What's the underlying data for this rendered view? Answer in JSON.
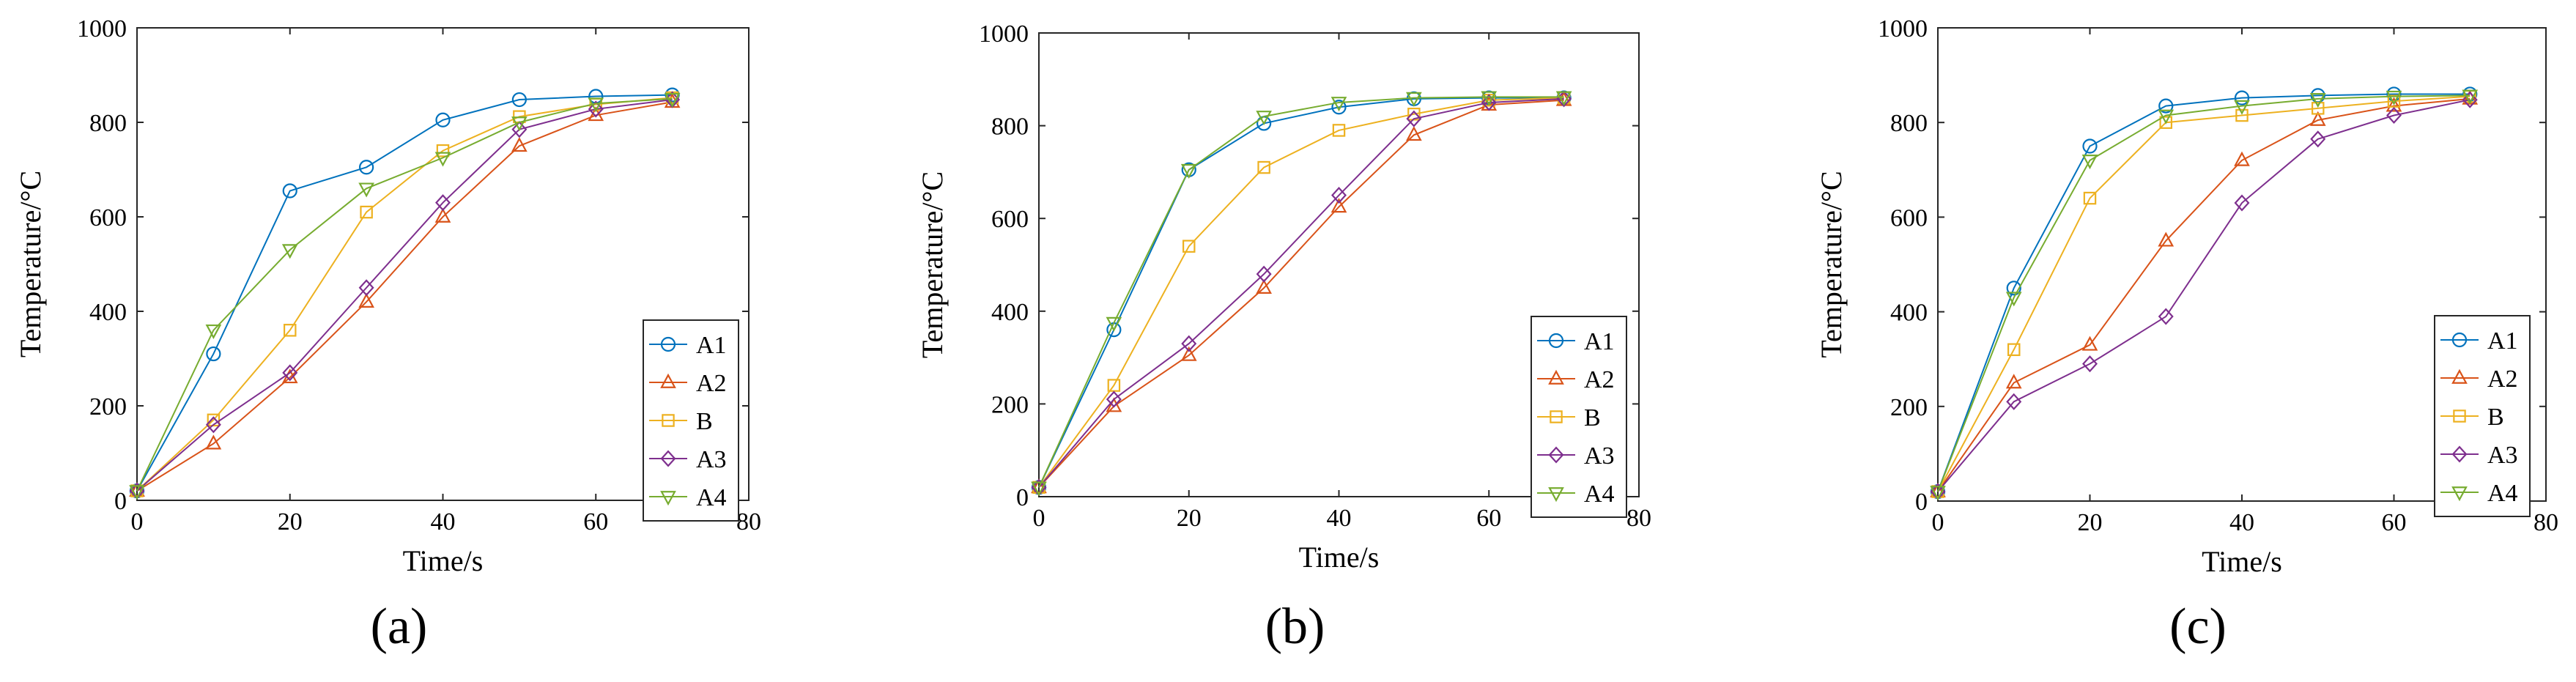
{
  "figure": {
    "series_styles": [
      {
        "name": "A1",
        "color": "#0072BD",
        "marker": "circle"
      },
      {
        "name": "A2",
        "color": "#D95319",
        "marker": "triangle-up"
      },
      {
        "name": "B",
        "color": "#EDB120",
        "marker": "square"
      },
      {
        "name": "A3",
        "color": "#7E2F8E",
        "marker": "diamond"
      },
      {
        "name": "A4",
        "color": "#77AC30",
        "marker": "triangle-down"
      }
    ]
  },
  "chart_data": [
    {
      "type": "line",
      "panel_label": "(a)",
      "xlabel": "Time/s",
      "ylabel": "Temperature/°C",
      "xlim": [
        0,
        80
      ],
      "ylim": [
        0,
        1000
      ],
      "xticks": [
        0,
        20,
        40,
        60,
        80
      ],
      "yticks": [
        0,
        200,
        400,
        600,
        800,
        1000
      ],
      "grid": false,
      "legend_position": "bottom-right",
      "x": [
        0,
        10,
        20,
        30,
        40,
        50,
        60,
        70
      ],
      "series": [
        {
          "name": "A1",
          "values": [
            20,
            310,
            655,
            705,
            805,
            848,
            855,
            858
          ]
        },
        {
          "name": "A2",
          "values": [
            20,
            120,
            260,
            420,
            600,
            750,
            815,
            843
          ]
        },
        {
          "name": "B",
          "values": [
            20,
            170,
            360,
            610,
            740,
            812,
            838,
            852
          ]
        },
        {
          "name": "A3",
          "values": [
            20,
            160,
            270,
            450,
            630,
            785,
            828,
            848
          ]
        },
        {
          "name": "A4",
          "values": [
            20,
            360,
            530,
            660,
            725,
            800,
            840,
            850
          ]
        }
      ]
    },
    {
      "type": "line",
      "panel_label": "(b)",
      "xlabel": "Time/s",
      "ylabel": "Temperature/°C",
      "xlim": [
        0,
        80
      ],
      "ylim": [
        0,
        1000
      ],
      "xticks": [
        0,
        20,
        40,
        60,
        80
      ],
      "yticks": [
        0,
        200,
        400,
        600,
        800,
        1000
      ],
      "grid": false,
      "legend_position": "bottom-right",
      "x": [
        0,
        10,
        20,
        30,
        40,
        50,
        60,
        70
      ],
      "series": [
        {
          "name": "A1",
          "values": [
            20,
            360,
            705,
            805,
            840,
            858,
            860,
            860
          ]
        },
        {
          "name": "A2",
          "values": [
            20,
            195,
            305,
            450,
            625,
            780,
            845,
            855
          ]
        },
        {
          "name": "B",
          "values": [
            20,
            240,
            540,
            710,
            790,
            825,
            855,
            860
          ]
        },
        {
          "name": "A3",
          "values": [
            20,
            210,
            330,
            480,
            650,
            815,
            850,
            858
          ]
        },
        {
          "name": "A4",
          "values": [
            20,
            375,
            705,
            820,
            850,
            860,
            862,
            862
          ]
        }
      ]
    },
    {
      "type": "line",
      "panel_label": "(c)",
      "xlabel": "Time/s",
      "ylabel": "Temperature/°C",
      "xlim": [
        0,
        80
      ],
      "ylim": [
        0,
        1000
      ],
      "xticks": [
        0,
        20,
        40,
        60,
        80
      ],
      "yticks": [
        0,
        200,
        400,
        600,
        800,
        1000
      ],
      "grid": false,
      "legend_position": "bottom-right",
      "x": [
        0,
        10,
        20,
        30,
        40,
        50,
        60,
        70
      ],
      "series": [
        {
          "name": "A1",
          "values": [
            20,
            450,
            750,
            835,
            852,
            857,
            860,
            860
          ]
        },
        {
          "name": "A2",
          "values": [
            20,
            250,
            330,
            550,
            720,
            805,
            835,
            850
          ]
        },
        {
          "name": "B",
          "values": [
            20,
            320,
            640,
            800,
            815,
            830,
            845,
            855
          ]
        },
        {
          "name": "A3",
          "values": [
            20,
            210,
            290,
            390,
            630,
            765,
            815,
            848
          ]
        },
        {
          "name": "A4",
          "values": [
            20,
            430,
            720,
            815,
            835,
            850,
            855,
            857
          ]
        }
      ]
    }
  ]
}
